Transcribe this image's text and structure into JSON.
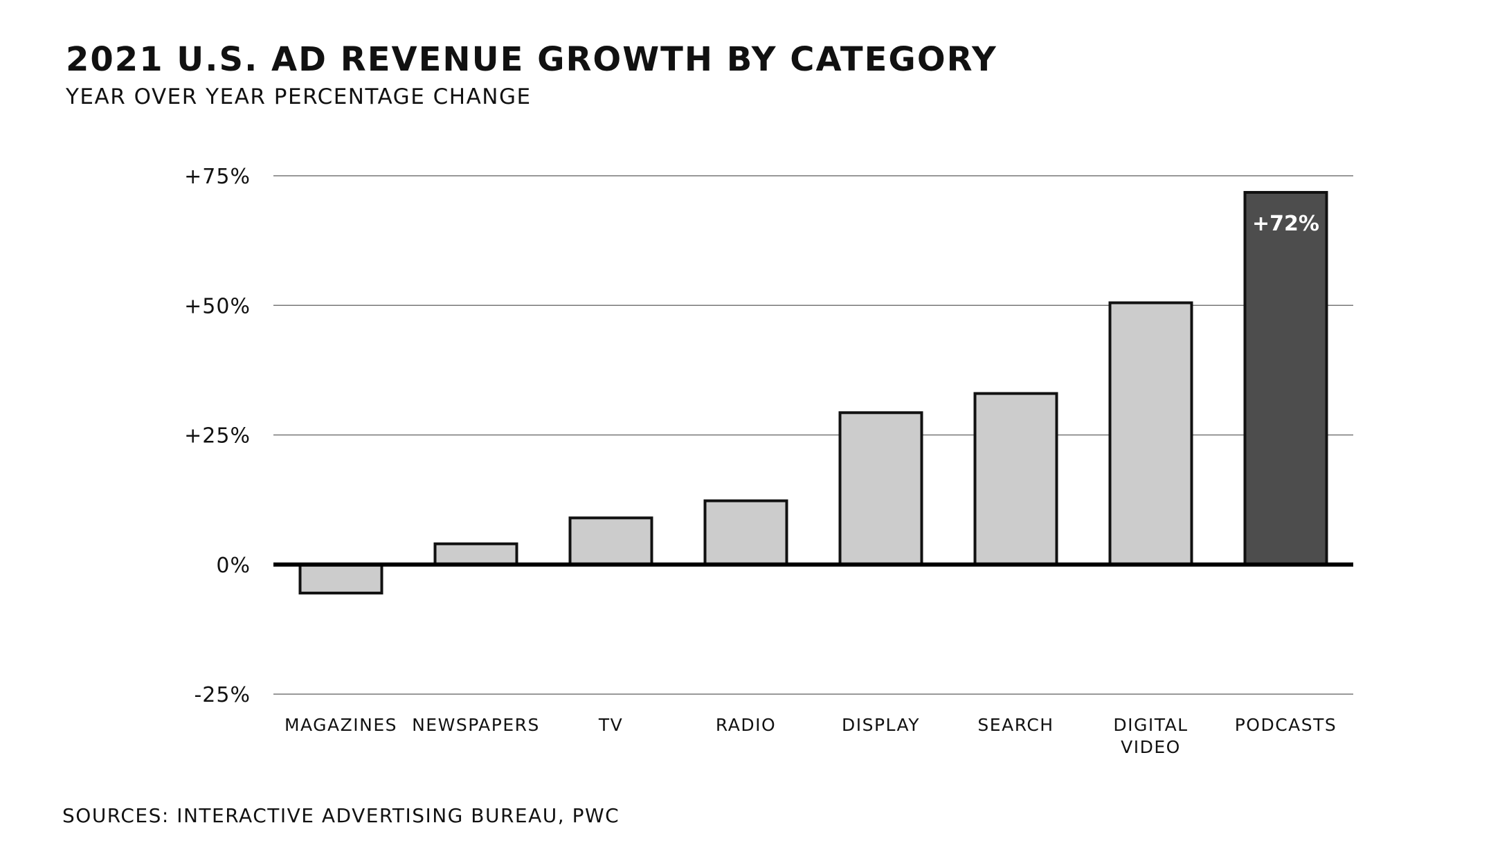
{
  "chart_data": {
    "type": "bar",
    "title": "2021 U.S. AD REVENUE GROWTH BY CATEGORY",
    "subtitle": "YEAR OVER YEAR PERCENTAGE CHANGE",
    "xlabel": "",
    "ylabel": "",
    "categories": [
      "MAGAZINES",
      "NEWSPAPERS",
      "TV",
      "RADIO",
      "DISPLAY",
      "SEARCH",
      "DIGITAL VIDEO",
      "PODCASTS"
    ],
    "values": [
      -5.5,
      4,
      9,
      12.3,
      29.3,
      33,
      50.5,
      71.8
    ],
    "ylim": [
      -25,
      75
    ],
    "yticks": [
      75,
      50,
      25,
      0,
      -25
    ],
    "ytick_labels": [
      "+75%",
      "+50%",
      "+25%",
      "0%",
      "-25%"
    ],
    "highlight_index": 7,
    "data_labels": [
      {
        "category": "PODCASTS",
        "text": "+72%"
      }
    ],
    "grid": true,
    "colors": {
      "bar": "#cccccc",
      "highlight": "#4d4d4d",
      "outline": "#111111",
      "grid": "#777777",
      "zero_line": "#000000"
    },
    "source": "SOURCES: INTERACTIVE ADVERTISING BUREAU, PWC"
  }
}
